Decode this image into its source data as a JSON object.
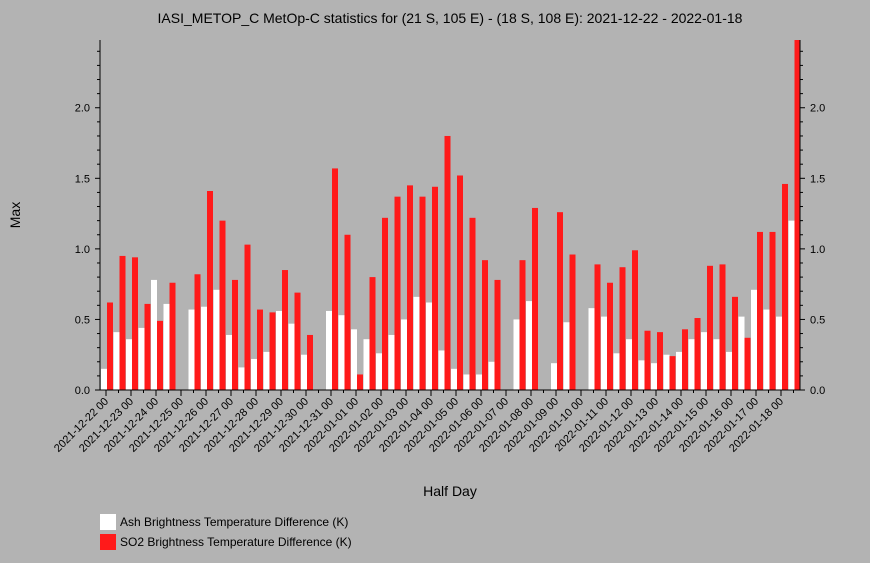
{
  "chart_data": {
    "type": "bar",
    "title": "IASI_METOP_C MetOp-C statistics for (21 S, 105 E) - (18 S, 108 E): 2021-12-22 - 2022-01-18",
    "xlabel": "Half Day",
    "ylabel": "Max",
    "ylim": [
      0,
      2.48
    ],
    "yticks": [
      "0.0",
      "0.5",
      "1.0",
      "1.5",
      "2.0"
    ],
    "xtick_labels": [
      "2021-12-22 00",
      "2021-12-23 00",
      "2021-12-24 00",
      "2021-12-25 00",
      "2021-12-26 00",
      "2021-12-27 00",
      "2021-12-28 00",
      "2021-12-29 00",
      "2021-12-30 00",
      "2021-12-31 00",
      "2022-01-01 00",
      "2022-01-02 00",
      "2022-01-03 00",
      "2022-01-04 00",
      "2022-01-05 00",
      "2022-01-06 00",
      "2022-01-07 00",
      "2022-01-08 00",
      "2022-01-09 00",
      "2022-01-10 00",
      "2022-01-11 00",
      "2022-01-12 00",
      "2022-01-13 00",
      "2022-01-14 00",
      "2022-01-15 00",
      "2022-01-16 00",
      "2022-01-17 00",
      "2022-01-18 00"
    ],
    "series": [
      {
        "name": "Ash Brightness Temperature Difference (K)",
        "color": "#ffffff",
        "values": [
          0.15,
          0.41,
          0.36,
          0.44,
          0.78,
          0.61,
          null,
          0.57,
          0.59,
          0.71,
          0.39,
          0.16,
          0.22,
          0.27,
          0.56,
          0.47,
          0.25,
          null,
          0.56,
          0.53,
          0.43,
          0.36,
          0.26,
          0.39,
          0.5,
          0.66,
          0.62,
          0.28,
          0.15,
          0.11,
          0.11,
          0.2,
          null,
          0.5,
          0.63,
          null,
          0.19,
          0.48,
          null,
          0.58,
          0.52,
          0.26,
          0.36,
          0.21,
          0.19,
          0.25,
          0.27,
          0.36,
          0.41,
          0.36,
          0.27,
          0.52,
          0.71,
          0.57,
          0.52,
          1.2
        ]
      },
      {
        "name": "SO2 Brightness Temperature Difference (K)",
        "color": "#ff1a1a",
        "values": [
          0.62,
          0.95,
          0.94,
          0.61,
          0.49,
          0.76,
          null,
          0.82,
          1.41,
          1.2,
          0.78,
          1.03,
          0.57,
          0.55,
          0.85,
          0.69,
          0.39,
          null,
          1.57,
          1.1,
          0.11,
          0.8,
          1.22,
          1.37,
          1.45,
          1.37,
          1.44,
          1.8,
          1.52,
          1.22,
          0.92,
          0.78,
          null,
          0.92,
          1.29,
          null,
          1.26,
          0.96,
          null,
          0.89,
          0.76,
          0.87,
          0.99,
          0.42,
          0.41,
          0.24,
          0.43,
          0.51,
          0.88,
          0.89,
          0.66,
          0.37,
          1.12,
          1.12,
          1.46,
          2.48
        ]
      }
    ]
  },
  "legend": [
    {
      "label": "Ash Brightness Temperature Difference (K)",
      "color": "#ffffff"
    },
    {
      "label": "SO2 Brightness Temperature Difference (K)",
      "color": "#ff1a1a"
    }
  ]
}
